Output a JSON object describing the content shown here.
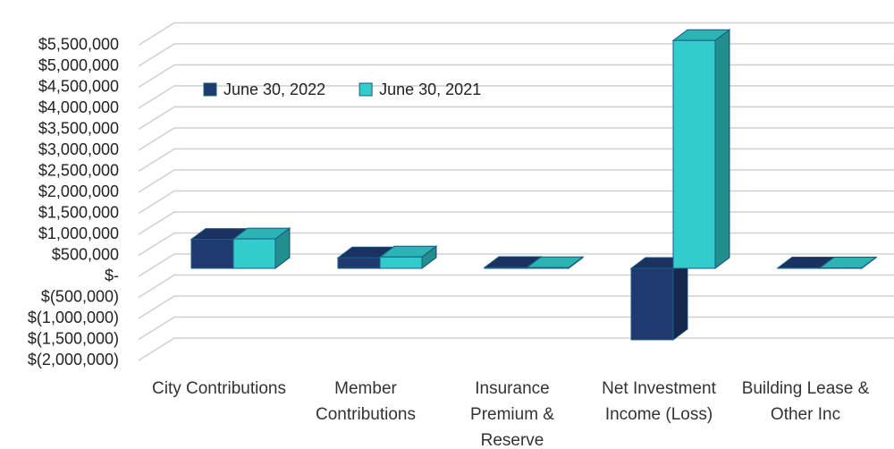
{
  "chart_data": {
    "type": "bar3d",
    "categories": [
      "City Contributions",
      "Member Contributions",
      "Insurance Premium & Reserve",
      "Net Investment Income (Loss)",
      "Building Lease & Other Inc"
    ],
    "series": [
      {
        "name": "June 30, 2022",
        "color": "#1f3a6e",
        "values": [
          690000,
          250000,
          20000,
          -1700000,
          10000
        ]
      },
      {
        "name": "June 30, 2021",
        "color": "#33cccc",
        "values": [
          700000,
          270000,
          15000,
          5420000,
          10000
        ]
      }
    ],
    "ylim": [
      -2000000,
      5500000
    ],
    "yticks": [
      {
        "value": -2000000,
        "label": "$(2,000,000)"
      },
      {
        "value": -1500000,
        "label": "$(1,500,000)"
      },
      {
        "value": -1000000,
        "label": "$(1,000,000)"
      },
      {
        "value": -500000,
        "label": "$(500,000)"
      },
      {
        "value": 0,
        "label": "$-"
      },
      {
        "value": 500000,
        "label": "$500,000"
      },
      {
        "value": 1000000,
        "label": "$1,000,000"
      },
      {
        "value": 1500000,
        "label": "$1,500,000"
      },
      {
        "value": 2000000,
        "label": "$2,000,000"
      },
      {
        "value": 2500000,
        "label": "$2,500,000"
      },
      {
        "value": 3000000,
        "label": "$3,000,000"
      },
      {
        "value": 3500000,
        "label": "$3,500,000"
      },
      {
        "value": 4000000,
        "label": "$4,000,000"
      },
      {
        "value": 4500000,
        "label": "$4,500,000"
      },
      {
        "value": 5000000,
        "label": "$5,000,000"
      },
      {
        "value": 5500000,
        "label": "$5,500,000"
      }
    ],
    "grid": true,
    "legend": "top-left"
  }
}
